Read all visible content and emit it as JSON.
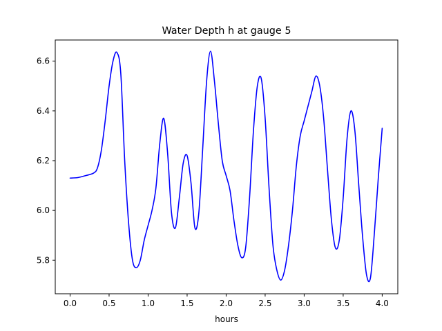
{
  "chart_data": {
    "type": "line",
    "title": "Water Depth h at gauge 5",
    "xlabel": "hours",
    "ylabel": "",
    "xlim": [
      -0.19,
      4.2
    ],
    "ylim": [
      5.665,
      6.685
    ],
    "xticks": [
      0.0,
      0.5,
      1.0,
      1.5,
      2.0,
      2.5,
      3.0,
      3.5,
      4.0
    ],
    "xtick_labels": [
      "0.0",
      "0.5",
      "1.0",
      "1.5",
      "2.0",
      "2.5",
      "3.0",
      "3.5",
      "4.0"
    ],
    "yticks": [
      5.8,
      6.0,
      6.2,
      6.4,
      6.6
    ],
    "ytick_labels": [
      "5.8",
      "6.0",
      "6.2",
      "6.4",
      "6.6"
    ],
    "grid": false,
    "series": [
      {
        "color": "#0000ff",
        "x": [
          0.0,
          0.1,
          0.2,
          0.3,
          0.35,
          0.4,
          0.45,
          0.5,
          0.55,
          0.6,
          0.65,
          0.7,
          0.75,
          0.8,
          0.85,
          0.9,
          0.95,
          1.0,
          1.05,
          1.1,
          1.15,
          1.2,
          1.25,
          1.3,
          1.35,
          1.4,
          1.45,
          1.5,
          1.55,
          1.6,
          1.65,
          1.7,
          1.75,
          1.8,
          1.85,
          1.9,
          1.95,
          2.0,
          2.05,
          2.1,
          2.15,
          2.2,
          2.25,
          2.3,
          2.35,
          2.4,
          2.45,
          2.5,
          2.55,
          2.6,
          2.65,
          2.7,
          2.75,
          2.8,
          2.85,
          2.9,
          2.95,
          3.0,
          3.05,
          3.1,
          3.15,
          3.2,
          3.25,
          3.3,
          3.35,
          3.4,
          3.45,
          3.5,
          3.55,
          3.6,
          3.65,
          3.7,
          3.75,
          3.8,
          3.85,
          3.9,
          3.95,
          4.0
        ],
        "y": [
          6.13,
          6.132,
          6.14,
          6.15,
          6.17,
          6.24,
          6.36,
          6.5,
          6.6,
          6.635,
          6.55,
          6.2,
          5.95,
          5.8,
          5.77,
          5.8,
          5.88,
          5.94,
          6.0,
          6.09,
          6.27,
          6.37,
          6.23,
          5.99,
          5.93,
          6.05,
          6.19,
          6.22,
          6.11,
          5.93,
          5.99,
          6.25,
          6.52,
          6.64,
          6.52,
          6.35,
          6.2,
          6.14,
          6.08,
          5.96,
          5.86,
          5.81,
          5.85,
          6.05,
          6.32,
          6.5,
          6.53,
          6.37,
          6.09,
          5.86,
          5.76,
          5.72,
          5.76,
          5.86,
          6.0,
          6.18,
          6.3,
          6.36,
          6.42,
          6.48,
          6.54,
          6.5,
          6.37,
          6.16,
          5.96,
          5.85,
          5.88,
          6.05,
          6.29,
          6.4,
          6.32,
          6.1,
          5.89,
          5.74,
          5.73,
          5.91,
          6.13,
          6.33
        ]
      }
    ]
  }
}
